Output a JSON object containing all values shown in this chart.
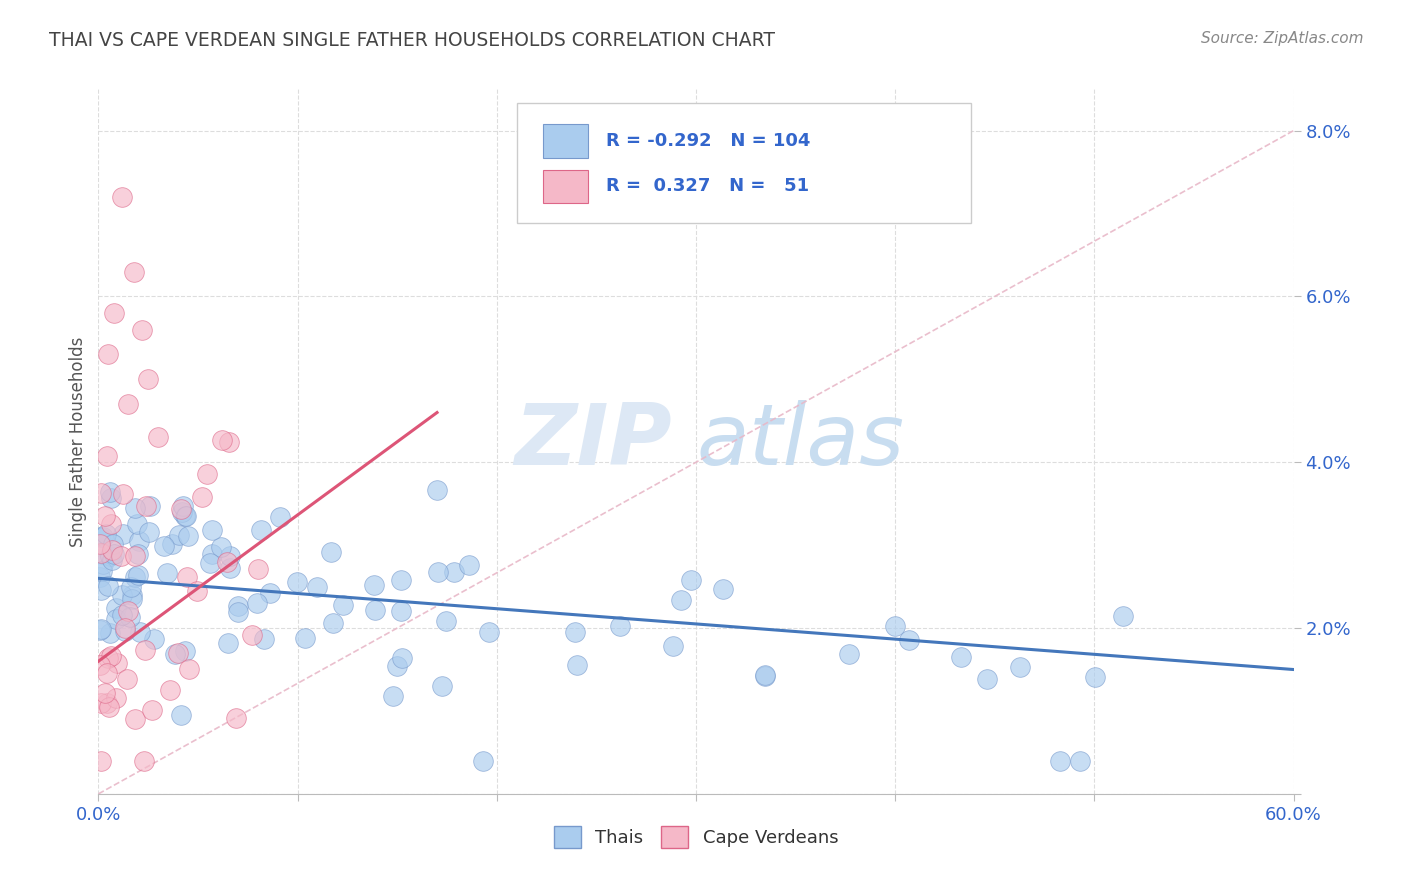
{
  "title": "THAI VS CAPE VERDEAN SINGLE FATHER HOUSEHOLDS CORRELATION CHART",
  "source": "Source: ZipAtlas.com",
  "ylabel": "Single Father Households",
  "xlim": [
    0.0,
    0.6
  ],
  "ylim": [
    0.0,
    0.085
  ],
  "thai_color": "#aaccee",
  "cape_color": "#f5b8c8",
  "thai_edge": "#7799cc",
  "cape_edge": "#dd6688",
  "trend_blue": "#4477bb",
  "trend_pink": "#dd5577",
  "diag_color": "#e8b8c8",
  "background_color": "#ffffff",
  "grid_color": "#dddddd",
  "title_color": "#444444",
  "axis_label_color": "#555555",
  "legend_text_color": "#3366cc",
  "watermark_zip_color": "#dde8f5",
  "watermark_atlas_color": "#c8ddf0",
  "legend_r1_val": "-0.292",
  "legend_n1_val": "104",
  "legend_r2_val": "0.327",
  "legend_n2_val": "51"
}
